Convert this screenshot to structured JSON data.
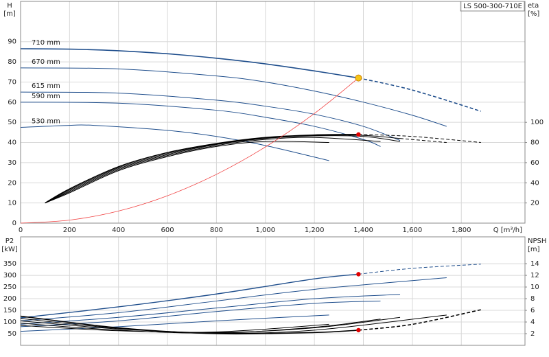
{
  "chart_data": [
    {
      "type": "line",
      "title": "LS 500-300-710E",
      "ylabel": "H",
      "yunit": "[m]",
      "y2label": "eta",
      "y2unit": "[%]",
      "xlabel": "Q [m³/h]",
      "xlim": [
        0,
        2060
      ],
      "xticks": [
        0,
        200,
        400,
        600,
        800,
        {
          "value": 1000,
          "label": "1,000"
        },
        {
          "value": 1200,
          "label": "1,200"
        },
        {
          "value": 1400,
          "label": "1,400"
        },
        {
          "value": 1600,
          "label": "1,600"
        },
        {
          "value": 1800,
          "label": "1,800"
        }
      ],
      "ylim": [
        0,
        110
      ],
      "yticks": [
        0,
        10,
        20,
        30,
        40,
        50,
        60,
        70,
        80,
        90
      ],
      "y2lim": [
        0,
        220
      ],
      "y2ticks": [
        20,
        40,
        60,
        80,
        100
      ],
      "grid": true,
      "series": [
        {
          "name": "710 mm",
          "color": "#1f4e8c",
          "width": 1.6,
          "dashed": false,
          "axis": "y",
          "x": [
            0,
            200,
            400,
            600,
            800,
            1000,
            1200,
            1380
          ],
          "values": [
            86.5,
            86.3,
            85.5,
            84,
            81.8,
            79,
            75.5,
            72
          ]
        },
        {
          "color": "#1f4e8c",
          "width": 1.6,
          "dashed": true,
          "axis": "y",
          "x": [
            1380,
            1600,
            1880
          ],
          "values": [
            72,
            66,
            55.5
          ]
        },
        {
          "name": "670 mm",
          "color": "#1f4e8c",
          "width": 1,
          "dashed": false,
          "axis": "y",
          "x": [
            0,
            400,
            800,
            1000,
            1200,
            1400,
            1600,
            1740
          ],
          "values": [
            77,
            76.5,
            73,
            70,
            65.5,
            60,
            53.5,
            48
          ]
        },
        {
          "name": "615 mm",
          "color": "#1f4e8c",
          "width": 1,
          "dashed": false,
          "axis": "y",
          "x": [
            0,
            400,
            800,
            1000,
            1200,
            1400,
            1550
          ],
          "values": [
            65,
            64.5,
            61,
            58,
            54,
            48,
            41
          ]
        },
        {
          "name": "590 mm",
          "color": "#1f4e8c",
          "width": 1,
          "dashed": false,
          "axis": "y",
          "x": [
            0,
            400,
            800,
            1000,
            1200,
            1400,
            1470
          ],
          "values": [
            60,
            59.5,
            56,
            52.5,
            48,
            41.5,
            38
          ]
        },
        {
          "name": "530 mm",
          "color": "#1f4e8c",
          "width": 1,
          "dashed": false,
          "axis": "y",
          "x": [
            0,
            200,
            300,
            600,
            800,
            1000,
            1260
          ],
          "values": [
            47.5,
            48.5,
            48.5,
            46,
            43,
            38.5,
            31
          ]
        },
        {
          "color": "#000000",
          "width": 1.4,
          "dashed": false,
          "axis": "y2",
          "x": [
            100,
            200,
            400,
            600,
            800,
            1000,
            1200,
            1380
          ],
          "values": [
            20,
            34,
            56,
            70,
            79,
            85,
            87.5,
            88
          ]
        },
        {
          "color": "#000000",
          "width": 1,
          "dashed": true,
          "axis": "y2",
          "x": [
            1380,
            1600,
            1880
          ],
          "values": [
            88,
            86,
            80
          ]
        },
        {
          "color": "#000000",
          "width": 1,
          "dashed": false,
          "axis": "y2",
          "x": [
            100,
            200,
            400,
            600,
            800,
            1000,
            1200,
            1400,
            1550
          ],
          "values": [
            20,
            33,
            55,
            69,
            78.5,
            84.5,
            87,
            87,
            84
          ]
        },
        {
          "color": "#000000",
          "width": 1,
          "dashed": true,
          "axis": "y2",
          "x": [
            1550,
            1740
          ],
          "values": [
            84,
            80
          ]
        },
        {
          "color": "#000000",
          "width": 1,
          "dashed": false,
          "axis": "y2",
          "x": [
            100,
            200,
            400,
            600,
            800,
            1000,
            1200,
            1400,
            1550
          ],
          "values": [
            20,
            32,
            54,
            68,
            78,
            84,
            86.5,
            86,
            81
          ]
        },
        {
          "color": "#000000",
          "width": 1,
          "dashed": false,
          "axis": "y2",
          "x": [
            100,
            200,
            400,
            600,
            800,
            1000,
            1200,
            1470
          ],
          "values": [
            20,
            31,
            53,
            67,
            77,
            83,
            85,
            81
          ]
        },
        {
          "color": "#000000",
          "width": 1,
          "dashed": false,
          "axis": "y2",
          "x": [
            100,
            200,
            400,
            600,
            800,
            1000,
            1260
          ],
          "values": [
            20,
            30,
            52,
            66,
            76,
            81,
            80
          ]
        },
        {
          "color": "#f04040",
          "width": 0.8,
          "dashed": false,
          "axis": "y",
          "x": [
            0,
            200,
            400,
            600,
            800,
            1000,
            1200,
            1380
          ],
          "values": [
            0,
            1.5,
            6,
            13.6,
            24.2,
            37.8,
            54.4,
            72
          ]
        }
      ],
      "markers": [
        {
          "x": 1380,
          "y": 72,
          "axis": "y",
          "color": "#f5c518"
        },
        {
          "x": 1380,
          "y": 88,
          "axis": "y2",
          "color": "#e00000"
        }
      ]
    },
    {
      "type": "line",
      "ylabel": "P2",
      "yunit": "[kW]",
      "y2label": "NPSH",
      "y2unit": "[m]",
      "xlim": [
        0,
        2060
      ],
      "xticks": [
        0,
        200,
        400,
        600,
        800,
        1000,
        1200,
        1400,
        1600,
        1800
      ],
      "ylim": [
        0,
        465
      ],
      "yticks": [
        50,
        100,
        150,
        200,
        250,
        300,
        350
      ],
      "y2lim": [
        0,
        18.6
      ],
      "y2ticks": [
        2,
        4,
        6,
        8,
        10,
        12,
        14
      ],
      "grid": true,
      "series": [
        {
          "color": "#1f4e8c",
          "width": 1.4,
          "dashed": false,
          "axis": "y",
          "x": [
            0,
            400,
            800,
            1200,
            1380
          ],
          "values": [
            118,
            165,
            220,
            285,
            305
          ]
        },
        {
          "color": "#1f4e8c",
          "width": 1,
          "dashed": true,
          "axis": "y",
          "x": [
            1380,
            1600,
            1880
          ],
          "values": [
            305,
            330,
            348
          ]
        },
        {
          "color": "#1f4e8c",
          "width": 1,
          "dashed": false,
          "axis": "y",
          "x": [
            0,
            400,
            800,
            1200,
            1740
          ],
          "values": [
            105,
            140,
            190,
            240,
            290
          ]
        },
        {
          "color": "#1f4e8c",
          "width": 1,
          "dashed": false,
          "axis": "y",
          "x": [
            0,
            400,
            800,
            1200,
            1550
          ],
          "values": [
            90,
            120,
            160,
            200,
            218
          ]
        },
        {
          "color": "#1f4e8c",
          "width": 1,
          "dashed": false,
          "axis": "y",
          "x": [
            0,
            400,
            800,
            1200,
            1470
          ],
          "values": [
            80,
            105,
            145,
            180,
            190
          ]
        },
        {
          "color": "#1f4e8c",
          "width": 1,
          "dashed": false,
          "axis": "y",
          "x": [
            0,
            400,
            800,
            1260
          ],
          "values": [
            60,
            80,
            105,
            130
          ]
        },
        {
          "color": "#000000",
          "width": 1.6,
          "dashed": false,
          "axis": "y2",
          "x": [
            0,
            400,
            800,
            1200,
            1380
          ],
          "values": [
            5,
            3,
            2,
            2.2,
            2.6
          ]
        },
        {
          "color": "#000000",
          "width": 1.6,
          "dashed": true,
          "axis": "y2",
          "x": [
            1380,
            1600,
            1880
          ],
          "values": [
            2.6,
            3.6,
            6.1
          ]
        },
        {
          "color": "#000000",
          "width": 1,
          "dashed": false,
          "axis": "y2",
          "x": [
            0,
            400,
            800,
            1200,
            1740
          ],
          "values": [
            4.6,
            2.9,
            2.1,
            2.6,
            5.2
          ]
        },
        {
          "color": "#000000",
          "width": 1,
          "dashed": false,
          "axis": "y2",
          "x": [
            0,
            400,
            800,
            1200,
            1550
          ],
          "values": [
            4.2,
            2.8,
            2.2,
            3,
            4.8
          ]
        },
        {
          "color": "#000000",
          "width": 1,
          "dashed": false,
          "axis": "y2",
          "x": [
            0,
            400,
            800,
            1200,
            1470
          ],
          "values": [
            3.8,
            2.6,
            2.1,
            3.1,
            4.5
          ]
        },
        {
          "color": "#000000",
          "width": 1,
          "dashed": false,
          "axis": "y2",
          "x": [
            0,
            400,
            800,
            1260
          ],
          "values": [
            3.4,
            2.5,
            2.3,
            3.6
          ]
        }
      ],
      "markers": [
        {
          "x": 1380,
          "y": 305,
          "axis": "y",
          "color": "#e00000"
        },
        {
          "x": 1380,
          "y": 2.6,
          "axis": "y2",
          "color": "#e00000"
        }
      ]
    }
  ]
}
